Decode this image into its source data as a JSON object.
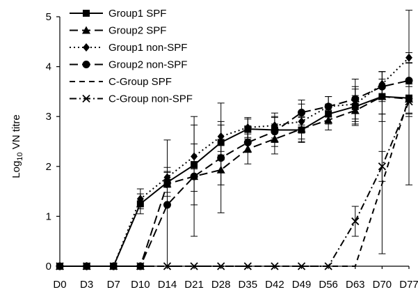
{
  "chart_data": {
    "type": "line",
    "title": "",
    "xlabel": "",
    "ylabel_main": "Log",
    "ylabel_sub": "10",
    "ylabel_rest": " VN titre",
    "categories": [
      "D0",
      "D3",
      "D7",
      "D10",
      "D14",
      "D21",
      "D28",
      "D35",
      "D42",
      "D49",
      "D56",
      "D63",
      "D70",
      "D77"
    ],
    "ylim": [
      0,
      5
    ],
    "yticks": [
      "0",
      "1",
      "2",
      "3",
      "4",
      "5"
    ],
    "grid": false,
    "legend_position": "top-left",
    "series": [
      {
        "name": "Group1 SPF",
        "dash": "solid",
        "marker": "square",
        "values": [
          0,
          0,
          0,
          1.25,
          1.68,
          2.03,
          2.48,
          2.75,
          2.73,
          2.73,
          3.05,
          3.2,
          3.4,
          3.37
        ],
        "err": [
          0,
          0,
          0,
          0.2,
          0.2,
          0.8,
          0.35,
          0.2,
          0.25,
          0.25,
          0.2,
          0.35,
          0.5,
          0.3
        ]
      },
      {
        "name": "Group2 SPF",
        "dash": "longdash",
        "marker": "triangle",
        "values": [
          0,
          0,
          0,
          0,
          1.65,
          1.8,
          1.93,
          2.35,
          2.55,
          2.75,
          2.93,
          3.12,
          3.4,
          3.35
        ],
        "err": [
          0,
          0,
          0,
          0,
          0.25,
          0.3,
          0.3,
          0.3,
          0.3,
          0.25,
          0.2,
          0.3,
          0.35,
          0.3
        ]
      },
      {
        "name": "Group1 non-SPF",
        "dash": "dotted",
        "marker": "diamond",
        "values": [
          0,
          0,
          0,
          1.35,
          1.78,
          2.2,
          2.6,
          2.78,
          2.82,
          2.9,
          3.2,
          3.25,
          3.65,
          4.18
        ],
        "err": [
          0,
          0,
          0,
          0.2,
          0.2,
          0.25,
          0.3,
          0.2,
          0.25,
          0.35,
          0.2,
          0.35,
          0.25,
          0.1
        ]
      },
      {
        "name": "Group2 non-SPF",
        "dash": "longdash",
        "marker": "circle",
        "values": [
          0,
          0,
          0,
          0,
          1.23,
          1.8,
          2.17,
          2.48,
          2.7,
          3.08,
          3.2,
          3.35,
          3.6,
          3.72
        ],
        "err": [
          0,
          0,
          0,
          0,
          1.3,
          1.2,
          1.1,
          0.2,
          0.3,
          0.25,
          0.2,
          0.4,
          0.3,
          0.35
        ]
      },
      {
        "name": "C-Group SPF",
        "dash": "dash",
        "marker": "none",
        "values": [
          0,
          0,
          0,
          0,
          0,
          0,
          0,
          0,
          0,
          0,
          0,
          0,
          1.65,
          3.38
        ],
        "err": [
          0,
          0,
          0,
          0,
          0,
          0,
          0,
          0,
          0,
          0,
          0,
          0,
          1.4,
          1.75
        ]
      },
      {
        "name": "C-Group non-SPF",
        "dash": "dashdot",
        "marker": "x",
        "values": [
          0,
          0,
          0,
          0,
          0,
          0,
          0,
          0,
          0,
          0,
          0,
          0.9,
          2.0,
          3.3
        ],
        "err": [
          0,
          0,
          0,
          0,
          0,
          0,
          0,
          0,
          0,
          0,
          0,
          0.3,
          0.3,
          0.3
        ]
      }
    ]
  }
}
